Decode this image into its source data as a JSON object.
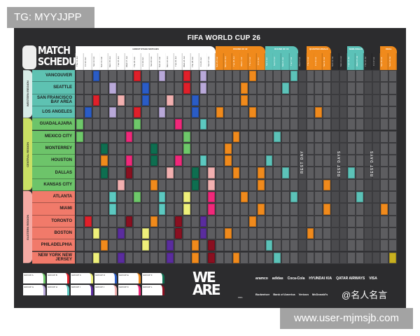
{
  "watermarks": {
    "tag": "TG: MYYJJPP",
    "url": "www.user-mjmsjb.com",
    "social": "@名人名言"
  },
  "poster": {
    "title": "FIFA WORLD CUP 26",
    "heading_line1": "MATCH",
    "heading_line2": "SCHEDULE",
    "logo_text": "WE ARE 26",
    "logo_sub": "FIFA"
  },
  "stages": [
    {
      "label": "GROUP STAGE MATCHES",
      "from": 0,
      "to": 16,
      "color": "#ffffff"
    },
    {
      "label": "ROUND OF 32",
      "from": 17,
      "to": 22,
      "color": "#f08a1c"
    },
    {
      "label": "ROUND OF 16",
      "from": 23,
      "to": 26,
      "color": "#5cc2b8"
    },
    {
      "label": "QUARTER-FINALS",
      "from": 28,
      "to": 30,
      "color": "#f08a1c"
    },
    {
      "label": "SEMI-FINALS",
      "from": 33,
      "to": 34,
      "color": "#5cc2b8"
    },
    {
      "label": "FINAL",
      "from": 37,
      "to": 38,
      "color": "#f08a1c"
    }
  ],
  "days": [
    "Thu 11 Jun",
    "Fri 12 Jun",
    "Sat 13 Jun",
    "Sun 14 Jun",
    "Mon 15 Jun",
    "Tue 16 Jun",
    "Wed 17 Jun",
    "Thu 18 Jun",
    "Fri 19 Jun",
    "Sat 20 Jun",
    "Sun 21 Jun",
    "Mon 22 Jun",
    "Tue 23 Jun",
    "Wed 24 Jun",
    "Thu 25 Jun",
    "Fri 26 Jun",
    "Sat 27 Jun",
    "Sun 28 Jun",
    "Mon 29 Jun",
    "Tue 30 Jun",
    "Wed 1 Jul",
    "Thu 2 Jul",
    "Fri 3 Jul",
    "Sat 4 Jul",
    "Sun 5 Jul",
    "Mon 6 Jul",
    "Tue 7 Jul",
    "Wed 8 Jul",
    "Thu 9 Jul",
    "Fri 10 Jul",
    "Sat 11 Jul",
    "Sun 12 Jul",
    "Mon 13 Jul",
    "Tue 14 Jul",
    "Wed 15 Jul",
    "Thu 16 Jul",
    "Fri 17 Jul",
    "Sat 18 Jul",
    "Sun 19 Jul"
  ],
  "rest_labels": [
    {
      "col": 27,
      "text": "REST DAY"
    },
    {
      "col": 31,
      "text": "REST DAYS"
    },
    {
      "col": 35,
      "text": "REST DAYS"
    }
  ],
  "rest_cols": [
    27,
    31,
    32,
    35,
    36
  ],
  "regions": [
    {
      "name": "WESTERN REGION",
      "strip": "#d8ece8",
      "cell": "#5ec2b2",
      "cities": [
        "VANCOUVER",
        "SEATTLE",
        "SAN FRANCISCO BAY AREA",
        "LOS ANGELES"
      ]
    },
    {
      "name": "CENTRAL REGION",
      "strip": "#c9e064",
      "cell": "#6dc46a",
      "cities": [
        "GUADALAJARA",
        "MEXICO CITY",
        "MONTERREY",
        "HOUSTON",
        "DALLAS",
        "KANSAS CITY"
      ]
    },
    {
      "name": "EASTERN REGION",
      "strip": "#f5aaa4",
      "cell": "#f17a6a",
      "cities": [
        "ATLANTA",
        "MIAMI",
        "TORONTO",
        "BOSTON",
        "PHILADELPHIA",
        "NEW YORK NEW JERSEY"
      ]
    }
  ],
  "colors": {
    "A": "#6ec86a",
    "B": "#e0202a",
    "C": "#eef07a",
    "D": "#2a5cc6",
    "E": "#f08a1c",
    "F": "#0e6e50",
    "G": "#b8a8d8",
    "H": "#5cc8c0",
    "I": "#5a2c9e",
    "J": "#f2b0b0",
    "K": "#f0287a",
    "L": "#8a0f20",
    "KO_ORANGE": "#f08a1c",
    "KO_TEAL": "#5cc2b8",
    "FINAL": "#c8b020"
  },
  "matches": [
    [
      0,
      2,
      "D"
    ],
    [
      0,
      7,
      "B"
    ],
    [
      0,
      10,
      "G"
    ],
    [
      0,
      13,
      "B"
    ],
    [
      0,
      15,
      "G"
    ],
    [
      0,
      21,
      "KO_ORANGE"
    ],
    [
      0,
      26,
      "KO_TEAL"
    ],
    [
      1,
      4,
      "G"
    ],
    [
      1,
      8,
      "D"
    ],
    [
      1,
      13,
      "B"
    ],
    [
      1,
      15,
      "G"
    ],
    [
      1,
      20,
      "KO_ORANGE"
    ],
    [
      1,
      25,
      "KO_TEAL"
    ],
    [
      2,
      2,
      "B"
    ],
    [
      2,
      5,
      "J"
    ],
    [
      2,
      8,
      "D"
    ],
    [
      2,
      11,
      "J"
    ],
    [
      2,
      14,
      "D"
    ],
    [
      2,
      20,
      "KO_ORANGE"
    ],
    [
      3,
      1,
      "D"
    ],
    [
      3,
      4,
      "G"
    ],
    [
      3,
      7,
      "B"
    ],
    [
      3,
      10,
      "G"
    ],
    [
      3,
      14,
      "D"
    ],
    [
      3,
      17,
      "KO_ORANGE"
    ],
    [
      3,
      21,
      "KO_ORANGE"
    ],
    [
      3,
      29,
      "KO_ORANGE"
    ],
    [
      4,
      0,
      "A"
    ],
    [
      4,
      7,
      "A"
    ],
    [
      4,
      12,
      "K"
    ],
    [
      4,
      15,
      "H"
    ],
    [
      5,
      0,
      "A"
    ],
    [
      5,
      6,
      "K"
    ],
    [
      5,
      13,
      "A"
    ],
    [
      5,
      19,
      "KO_ORANGE"
    ],
    [
      5,
      24,
      "KO_TEAL"
    ],
    [
      6,
      3,
      "F"
    ],
    [
      6,
      9,
      "F"
    ],
    [
      6,
      13,
      "A"
    ],
    [
      6,
      18,
      "KO_ORANGE"
    ],
    [
      7,
      3,
      "E"
    ],
    [
      7,
      6,
      "K"
    ],
    [
      7,
      9,
      "F"
    ],
    [
      7,
      12,
      "K"
    ],
    [
      7,
      15,
      "H"
    ],
    [
      7,
      18,
      "KO_ORANGE"
    ],
    [
      7,
      23,
      "KO_TEAL"
    ],
    [
      8,
      3,
      "F"
    ],
    [
      8,
      6,
      "L"
    ],
    [
      8,
      11,
      "J"
    ],
    [
      8,
      14,
      "F"
    ],
    [
      8,
      16,
      "J"
    ],
    [
      8,
      19,
      "KO_ORANGE"
    ],
    [
      8,
      22,
      "KO_ORANGE"
    ],
    [
      8,
      25,
      "KO_TEAL"
    ],
    [
      8,
      33,
      "KO_TEAL"
    ],
    [
      9,
      5,
      "J"
    ],
    [
      9,
      9,
      "E"
    ],
    [
      9,
      14,
      "F"
    ],
    [
      9,
      16,
      "J"
    ],
    [
      9,
      22,
      "KO_ORANGE"
    ],
    [
      9,
      30,
      "KO_ORANGE"
    ],
    [
      10,
      4,
      "H"
    ],
    [
      10,
      7,
      "A"
    ],
    [
      10,
      10,
      "H"
    ],
    [
      10,
      13,
      "C"
    ],
    [
      10,
      16,
      "K"
    ],
    [
      10,
      20,
      "KO_ORANGE"
    ],
    [
      10,
      26,
      "KO_TEAL"
    ],
    [
      10,
      34,
      "KO_TEAL"
    ],
    [
      11,
      4,
      "H"
    ],
    [
      11,
      10,
      "H"
    ],
    [
      11,
      13,
      "C"
    ],
    [
      11,
      16,
      "K"
    ],
    [
      11,
      22,
      "KO_ORANGE"
    ],
    [
      11,
      30,
      "KO_ORANGE"
    ],
    [
      11,
      37,
      "KO_ORANGE"
    ],
    [
      12,
      1,
      "B"
    ],
    [
      12,
      6,
      "L"
    ],
    [
      12,
      9,
      "E"
    ],
    [
      12,
      12,
      "L"
    ],
    [
      12,
      15,
      "I"
    ],
    [
      12,
      21,
      "KO_ORANGE"
    ],
    [
      13,
      2,
      "C"
    ],
    [
      13,
      5,
      "I"
    ],
    [
      13,
      8,
      "C"
    ],
    [
      13,
      12,
      "L"
    ],
    [
      13,
      15,
      "I"
    ],
    [
      13,
      18,
      "KO_ORANGE"
    ],
    [
      13,
      28,
      "KO_ORANGE"
    ],
    [
      14,
      3,
      "E"
    ],
    [
      14,
      8,
      "C"
    ],
    [
      14,
      11,
      "I"
    ],
    [
      14,
      14,
      "E"
    ],
    [
      14,
      16,
      "L"
    ],
    [
      14,
      23,
      "KO_TEAL"
    ],
    [
      15,
      2,
      "C"
    ],
    [
      15,
      5,
      "I"
    ],
    [
      15,
      11,
      "I"
    ],
    [
      15,
      14,
      "E"
    ],
    [
      15,
      16,
      "L"
    ],
    [
      15,
      19,
      "KO_ORANGE"
    ],
    [
      15,
      24,
      "KO_TEAL"
    ],
    [
      15,
      38,
      "FINAL"
    ]
  ],
  "groups": [
    {
      "label": "GROUP A",
      "color": "#6ec86a"
    },
    {
      "label": "GROUP B",
      "color": "#e0202a"
    },
    {
      "label": "GROUP C",
      "color": "#eef07a"
    },
    {
      "label": "GROUP D",
      "color": "#2a5cc6"
    },
    {
      "label": "GROUP E",
      "color": "#f08a1c"
    },
    {
      "label": "GROUP F",
      "color": "#0e6e50"
    },
    {
      "label": "GROUP G",
      "color": "#b8a8d8"
    },
    {
      "label": "GROUP H",
      "color": "#5cc8c0"
    },
    {
      "label": "GROUP I",
      "color": "#5a2c9e"
    },
    {
      "label": "GROUP J",
      "color": "#f2b0b0"
    },
    {
      "label": "GROUP K",
      "color": "#f0287a"
    },
    {
      "label": "GROUP L",
      "color": "#8a0f20"
    }
  ],
  "sponsors_row1": [
    "aramco",
    "adidas",
    "Coca-Cola",
    "HYUNDAI KIA",
    "QATAR AIRWAYS",
    "VISA"
  ],
  "sponsors_row2": [
    "Budweiser",
    "Bank of America",
    "Verizon",
    "McDonald's"
  ]
}
